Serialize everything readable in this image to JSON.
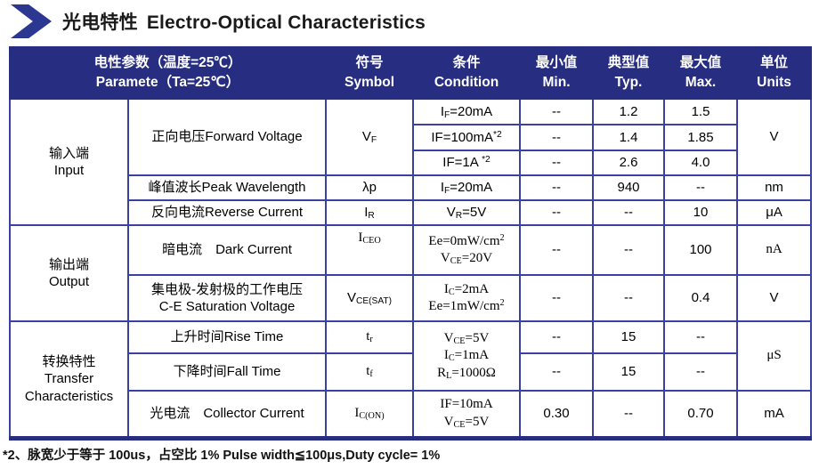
{
  "title": {
    "zh": "光电特性",
    "en": "Electro-Optical Characteristics"
  },
  "table": {
    "header": {
      "param_line1": "电性参数（温度=25℃）",
      "param_line2": "Paramete（Ta=25℃）",
      "symbol_zh": "符号",
      "symbol_en": "Symbol",
      "condition_zh": "条件",
      "condition_en": "Condition",
      "min_zh": "最小值",
      "min_en": "Min.",
      "typ_zh": "典型值",
      "typ_en": "Typ.",
      "max_zh": "最大值",
      "max_en": "Max.",
      "units_zh": "单位",
      "units_en": "Units"
    },
    "groups": {
      "input": {
        "zh": "输入端",
        "en": "Input"
      },
      "output": {
        "zh": "输出端",
        "en": "Output"
      },
      "transfer": {
        "zh": "转换特性",
        "en": "Transfer",
        "en2": "Characteristics"
      }
    },
    "rows": {
      "vf": {
        "param": "正向电压Forward Voltage",
        "symbol": [
          [
            "t",
            "V"
          ],
          [
            "sub",
            "F"
          ]
        ],
        "unit": "V",
        "sub": [
          {
            "cond": [
              [
                "t",
                "I"
              ],
              [
                "sub",
                "F"
              ],
              [
                "t",
                "=20mA"
              ]
            ],
            "min": "--",
            "typ": "1.2",
            "max": "1.5"
          },
          {
            "cond": [
              [
                "t",
                "IF=100mA"
              ],
              [
                "sup",
                "*2"
              ]
            ],
            "min": "--",
            "typ": "1.4",
            "max": "1.85"
          },
          {
            "cond": [
              [
                "t",
                "IF=1A "
              ],
              [
                "sup",
                "*2"
              ]
            ],
            "min": "--",
            "typ": "2.6",
            "max": "4.0"
          }
        ]
      },
      "peak": {
        "param": "峰值波长Peak Wavelength",
        "symbol": [
          [
            "t",
            "λp"
          ]
        ],
        "cond": [
          [
            "t",
            "I"
          ],
          [
            "sub",
            "F"
          ],
          [
            "t",
            "=20mA"
          ]
        ],
        "min": "--",
        "typ": "940",
        "max": "--",
        "unit": "nm"
      },
      "reverse": {
        "param": "反向电流Reverse Current",
        "symbol": [
          [
            "t",
            "I"
          ],
          [
            "sub",
            "R"
          ]
        ],
        "cond": [
          [
            "t",
            "V"
          ],
          [
            "sub",
            "R"
          ],
          [
            "t",
            "=5V"
          ]
        ],
        "min": "--",
        "typ": "--",
        "max": "10",
        "unit": "μA"
      },
      "dark": {
        "param": "暗电流　Dark Current",
        "symbol": [
          [
            "t",
            "I"
          ],
          [
            "sub",
            "CEO"
          ]
        ],
        "cond": [
          [
            "t",
            "Ee=0mW/cm"
          ],
          [
            "sup",
            "2"
          ],
          [
            "br",
            ""
          ],
          [
            "t",
            "V"
          ],
          [
            "sub",
            "CE"
          ],
          [
            "t",
            "=20V"
          ]
        ],
        "min": "--",
        "typ": "--",
        "max": "100",
        "unit": "nA"
      },
      "cesat": {
        "param_zh": "集电极-发射极的工作电压",
        "param_en": "C-E Saturation Voltage",
        "symbol": [
          [
            "t",
            "V"
          ],
          [
            "sub",
            "CE(SAT)"
          ]
        ],
        "cond": [
          [
            "t",
            "I"
          ],
          [
            "sub",
            "C"
          ],
          [
            "t",
            "=2mA"
          ],
          [
            "br",
            ""
          ],
          [
            "t",
            "Ee=1mW/cm"
          ],
          [
            "sup",
            "2"
          ]
        ],
        "min": "--",
        "typ": "--",
        "max": "0.4",
        "unit": "V"
      },
      "rise": {
        "param": "上升时间Rise Time",
        "symbol": [
          [
            "t",
            "t"
          ],
          [
            "sub",
            "r"
          ]
        ],
        "min": "--",
        "typ": "15",
        "max": "--"
      },
      "fall": {
        "param": "下降时间Fall Time",
        "symbol": [
          [
            "t",
            "t"
          ],
          [
            "sub",
            "f"
          ]
        ],
        "min": "--",
        "typ": "15",
        "max": "--"
      },
      "risefall_cond": [
        [
          "t",
          "V"
        ],
        [
          "sub",
          "CE"
        ],
        [
          "t",
          "=5V"
        ],
        [
          "br",
          ""
        ],
        [
          "t",
          "I"
        ],
        [
          "sub",
          "C"
        ],
        [
          "t",
          "=1mA"
        ],
        [
          "br",
          ""
        ],
        [
          "t",
          "R"
        ],
        [
          "sub",
          "L"
        ],
        [
          "t",
          "=1000Ω"
        ]
      ],
      "risefall_unit": "μS",
      "collector": {
        "param": "光电流　Collector Current",
        "symbol": [
          [
            "t",
            "I"
          ],
          [
            "sub",
            "C(ON)"
          ]
        ],
        "cond": [
          [
            "t",
            "IF=10mA"
          ],
          [
            "br",
            ""
          ],
          [
            "t",
            "V"
          ],
          [
            "sub",
            "CE"
          ],
          [
            "t",
            "=5V"
          ]
        ],
        "min": "0.30",
        "typ": "--",
        "max": "0.70",
        "unit": "mA"
      }
    }
  },
  "footnote": "*2、脉宽少于等于 100us，占空比 1% Pulse width≦100μs,Duty cycle= 1%"
}
